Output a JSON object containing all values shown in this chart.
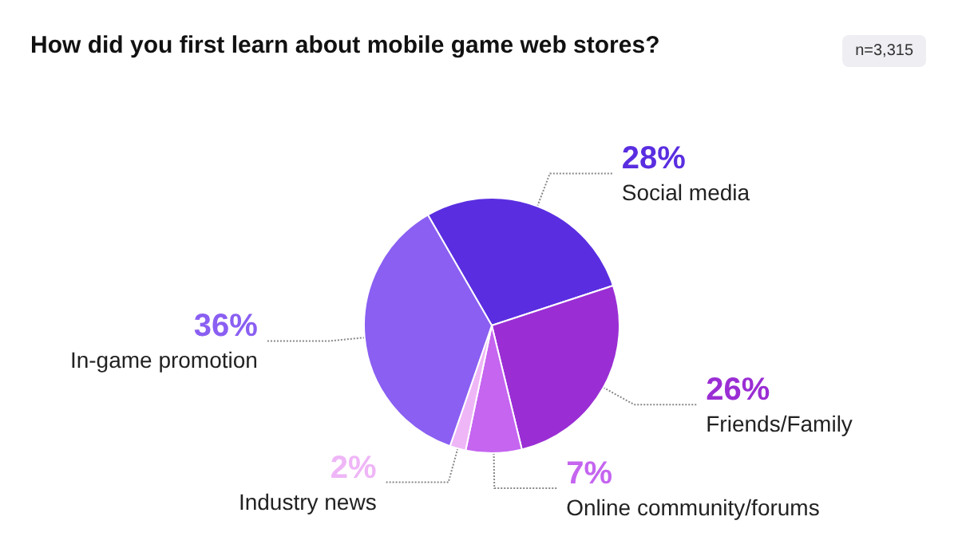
{
  "chart_data": {
    "type": "pie",
    "title": "How did you first learn about mobile game web stores?",
    "annotations": [
      "n=3,315"
    ],
    "categories": [
      "Social media",
      "Friends/Family",
      "Online community/forums",
      "Industry news",
      "In-game promotion"
    ],
    "values": [
      28,
      26,
      7,
      2,
      36
    ],
    "colors": [
      "#5a2ee0",
      "#9a2ed4",
      "#c565f0",
      "#efb6f7",
      "#8a5ff2"
    ],
    "value_labels": [
      "28%",
      "26%",
      "7%",
      "2%",
      "36%"
    ],
    "legend": false
  }
}
